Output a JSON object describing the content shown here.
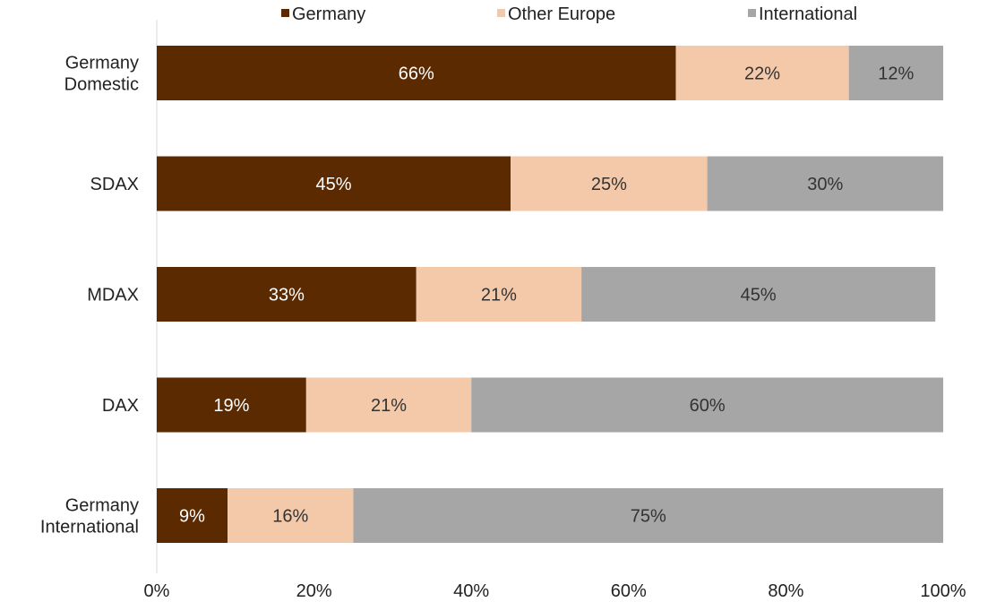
{
  "chart_data": {
    "type": "bar",
    "orientation": "horizontal",
    "stacked": true,
    "categories": [
      [
        "Germany",
        "Domestic"
      ],
      [
        "SDAX"
      ],
      [
        "MDAX"
      ],
      [
        "DAX"
      ],
      [
        "Germany",
        "International"
      ]
    ],
    "series": [
      {
        "name": "Germany",
        "values": [
          66,
          45,
          33,
          19,
          9
        ],
        "color": "#5c2a00",
        "label_color": "#ffffff"
      },
      {
        "name": "Other Europe",
        "values": [
          22,
          25,
          21,
          21,
          16
        ],
        "color": "#f3c9a9",
        "label_color": "#333333"
      },
      {
        "name": "International",
        "values": [
          12,
          30,
          45,
          60,
          75
        ],
        "color": "#a6a6a6",
        "label_color": "#333333"
      }
    ],
    "x_ticks": [
      "0%",
      "20%",
      "40%",
      "60%",
      "80%",
      "100%"
    ],
    "xlim": [
      0,
      100
    ],
    "value_suffix": "%",
    "grid": false,
    "legend_position": "top",
    "title": "",
    "xlabel": "",
    "ylabel": ""
  }
}
